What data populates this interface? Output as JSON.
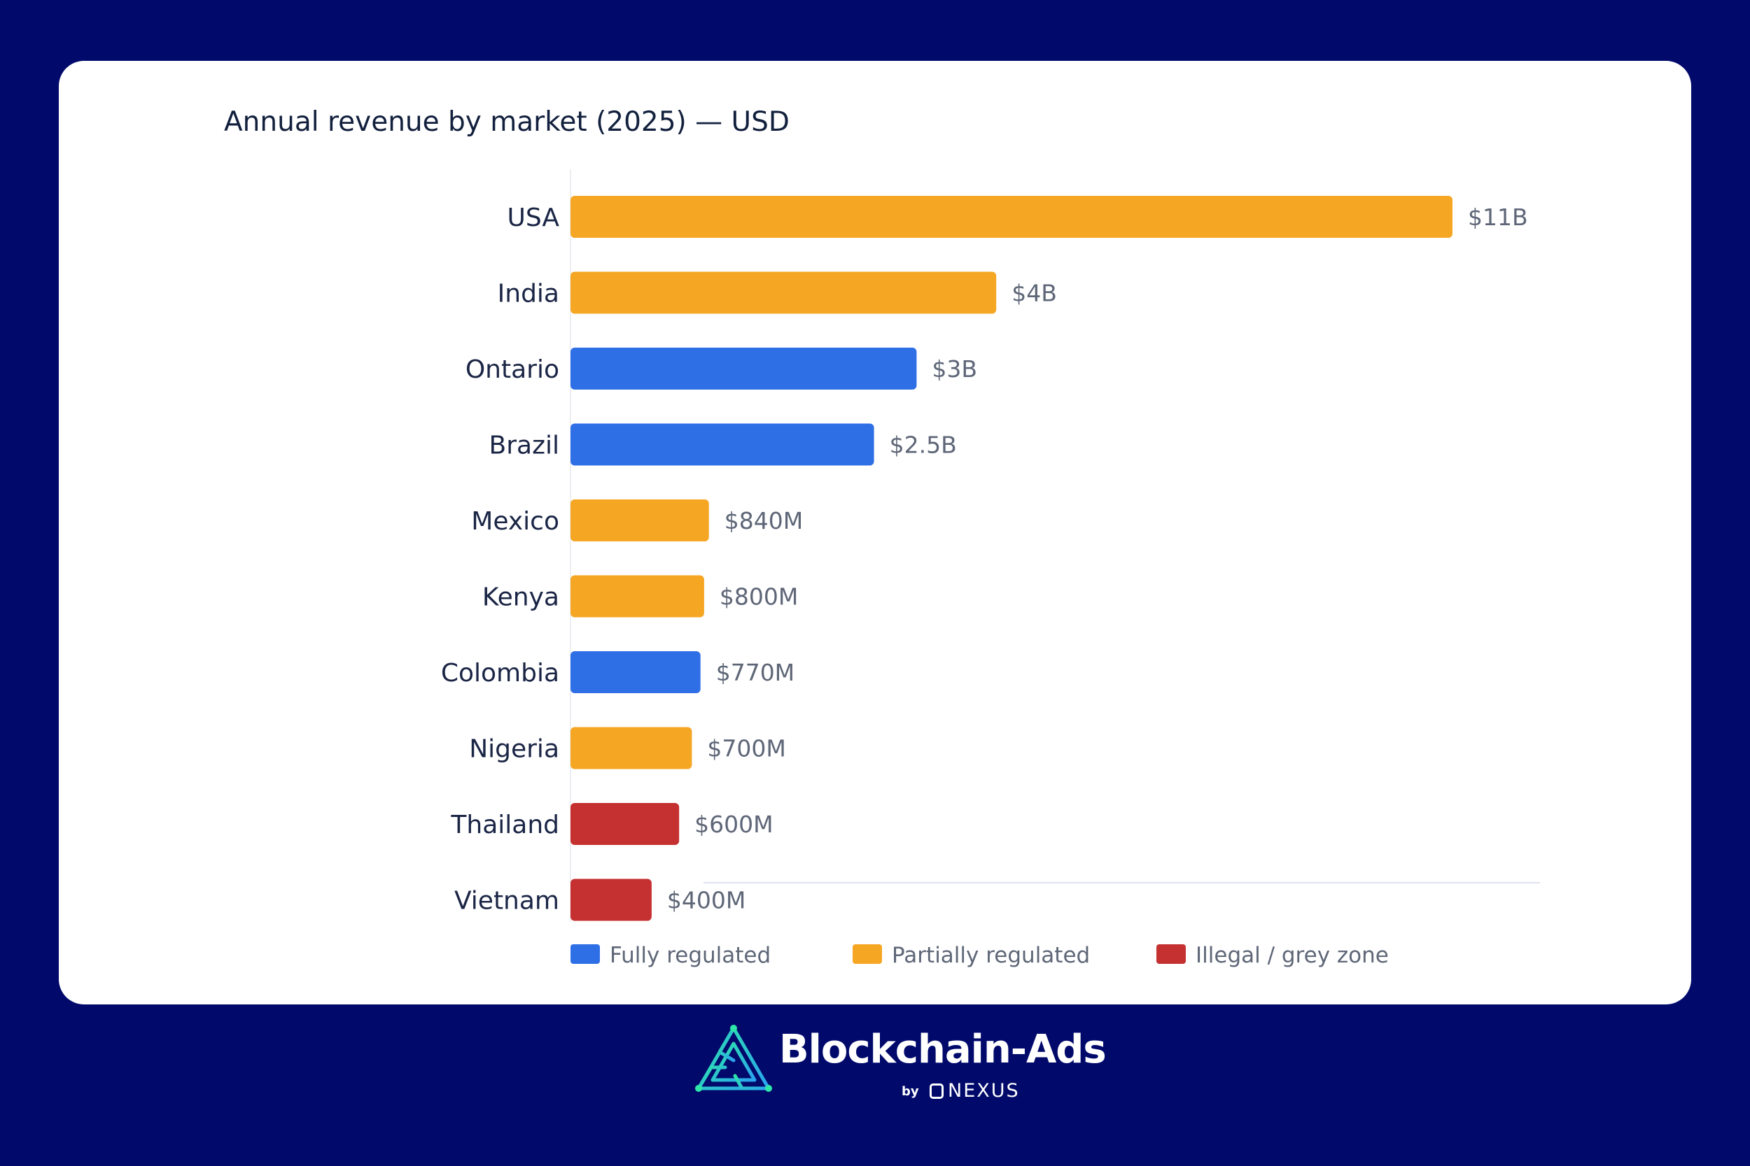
{
  "colors": {
    "background": "#010a6b",
    "card": "#ffffff",
    "fully_regulated": "#2f6fe6",
    "partially_regulated": "#f5a623",
    "illegal_grey_zone": "#c53030"
  },
  "chart_data": {
    "type": "bar",
    "orientation": "horizontal",
    "title": "Annual revenue by market (2025) — USD",
    "categories": [
      "USA",
      "India",
      "Ontario",
      "Brazil",
      "Mexico",
      "Kenya",
      "Colombia",
      "Nigeria",
      "Thailand",
      "Vietnam"
    ],
    "values": [
      11000000000,
      4000000000,
      3000000000,
      2500000000,
      840000000,
      800000000,
      770000000,
      700000000,
      600000000,
      400000000
    ],
    "value_labels": [
      "$11B",
      "$4B",
      "$3B",
      "$2.5B",
      "$840M",
      "$800M",
      "$770M",
      "$700M",
      "$600M",
      "$400M"
    ],
    "groups": [
      "partially_regulated",
      "partially_regulated",
      "fully_regulated",
      "fully_regulated",
      "partially_regulated",
      "partially_regulated",
      "fully_regulated",
      "partially_regulated",
      "illegal_grey_zone",
      "illegal_grey_zone"
    ],
    "legend": [
      {
        "key": "fully_regulated",
        "label": "Fully regulated"
      },
      {
        "key": "partially_regulated",
        "label": "Partially regulated"
      },
      {
        "key": "illegal_grey_zone",
        "label": "Illegal / grey zone"
      }
    ],
    "legend_position": "bottom",
    "grid": false
  },
  "brand": {
    "name": "Blockchain-Ads",
    "by": "by",
    "partner": "NEXUS"
  }
}
